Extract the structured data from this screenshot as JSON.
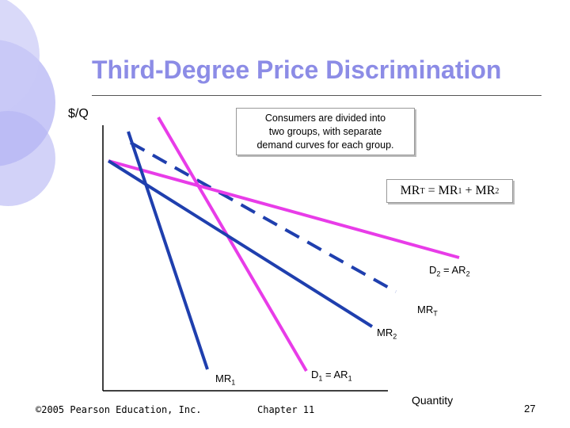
{
  "title": "Third-Degree Price Discrimination",
  "y_axis_label": "$/Q",
  "x_axis_label": "Quantity",
  "info_box": [
    "Consumers are divided into",
    "two groups, with separate",
    "demand curves for each group."
  ],
  "mrt_box": {
    "main": "MR",
    "sub1": "T",
    "eq": " = MR",
    "sub2": "1",
    "plus": " + MR",
    "sub3": "2"
  },
  "labels": {
    "d2": {
      "main": "D",
      "sub": "2",
      "mid": " = AR",
      "sub2": "2"
    },
    "mrt": {
      "main": "MR",
      "sub": "T"
    },
    "mr2": {
      "main": "MR",
      "sub": "2"
    },
    "mr1": {
      "main": "MR",
      "sub": "1"
    },
    "d1": {
      "main": "D",
      "sub": "1",
      "mid": " = AR",
      "sub2": "1"
    }
  },
  "footer": {
    "copyright": "©2005 Pearson Education, Inc.",
    "chapter": "Chapter 11",
    "page": "27"
  },
  "colors": {
    "title": "#8c8ce6",
    "blue_line": "#1f3fae",
    "magenta_line": "#e83ce8",
    "dashed_line": "#1f3fae",
    "decor": "#9a9af0"
  }
}
